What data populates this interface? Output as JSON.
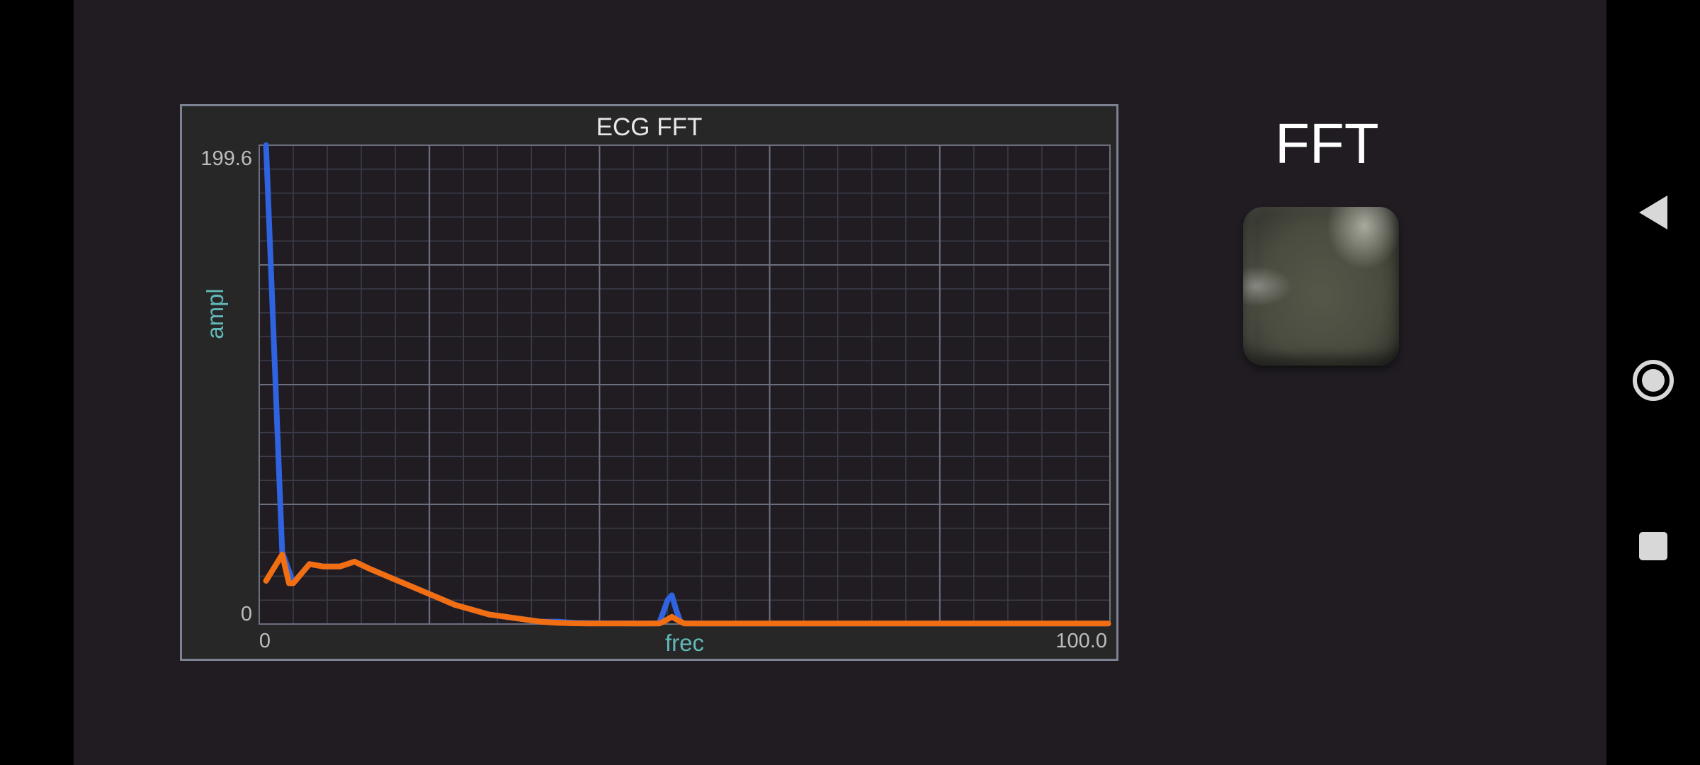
{
  "screen": {
    "button_label": "FFT"
  },
  "nav": {
    "back": "back-icon",
    "home": "home-icon",
    "recents": "recents-icon"
  },
  "colors": {
    "background": "#201c22",
    "panel": "#272727",
    "plot": "#201c22",
    "grid_major": "#6c6f7e",
    "grid_minor": "#3c3d4a",
    "series_blue": "#2f63df",
    "series_orange": "#f26e12",
    "axis_label": "#62b8b8"
  },
  "chart_data": {
    "type": "line",
    "title": "ECG FFT",
    "xlabel": "frec",
    "ylabel": "ampl",
    "xlim": [
      0,
      100.0
    ],
    "ylim": [
      0,
      199.6
    ],
    "x_tick_labels": [
      "0",
      "100.0"
    ],
    "y_tick_labels": [
      "0",
      "199.6"
    ],
    "grid": true,
    "series": [
      {
        "color": "#2f63df",
        "x": [
          0.8,
          2.7,
          4,
          5.9,
          7.5,
          9.5,
          11.2,
          13,
          15,
          17,
          19,
          21,
          23,
          25,
          27,
          29,
          31,
          33,
          35,
          37,
          39,
          41,
          43,
          45,
          47,
          47.5,
          48,
          48.5,
          49,
          49.5,
          50,
          52,
          55,
          60,
          65,
          70,
          75,
          80,
          85,
          90,
          95,
          99.8
        ],
        "y": [
          199.6,
          30,
          17,
          25,
          24,
          24,
          26,
          23,
          20,
          17,
          14,
          11,
          8,
          6,
          4,
          3,
          2,
          1,
          1,
          0.5,
          0.4,
          0.3,
          0.3,
          0.2,
          0.3,
          5,
          10,
          12,
          6,
          1,
          0.3,
          0.2,
          0.2,
          0.2,
          0.2,
          0.2,
          0.2,
          0.2,
          0.2,
          0.2,
          0.2,
          0.2
        ]
      },
      {
        "color": "#f26e12",
        "x": [
          0.8,
          2.7,
          3.5,
          4,
          5.9,
          7.5,
          9.5,
          11.2,
          13,
          15,
          17,
          19,
          21,
          23,
          25,
          27,
          29,
          31,
          33,
          35,
          37,
          39,
          41,
          43,
          45,
          47,
          47.5,
          48,
          48.5,
          49,
          49.5,
          50,
          52,
          55,
          60,
          65,
          70,
          75,
          80,
          85,
          90,
          95,
          99.8
        ],
        "y": [
          18,
          29,
          17,
          17,
          25,
          24,
          24,
          26,
          23,
          20,
          17,
          14,
          11,
          8,
          6,
          4,
          3,
          2,
          1,
          0.5,
          0.3,
          0.2,
          0.2,
          0.2,
          0.2,
          0.2,
          1,
          2,
          3,
          2,
          1,
          0.2,
          0.2,
          0.2,
          0.2,
          0.2,
          0.2,
          0.2,
          0.2,
          0.2,
          0.2,
          0.2,
          0.2
        ]
      }
    ]
  }
}
